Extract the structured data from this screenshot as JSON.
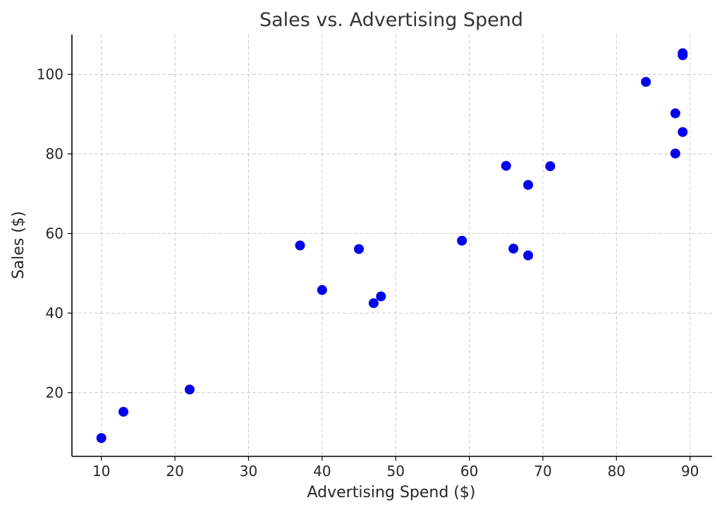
{
  "chart_data": {
    "type": "scatter",
    "title": "Sales vs. Advertising Spend",
    "xlabel": "Advertising Spend ($)",
    "ylabel": "Sales ($)",
    "xlim": [
      6,
      93
    ],
    "ylim": [
      4,
      110
    ],
    "xticks": [
      10,
      20,
      30,
      40,
      50,
      60,
      70,
      80,
      90
    ],
    "yticks": [
      20,
      40,
      60,
      80,
      100
    ],
    "grid": true,
    "marker_color": "#0000ee",
    "points": [
      {
        "x": 10,
        "y": 8.6
      },
      {
        "x": 13,
        "y": 15.2
      },
      {
        "x": 22,
        "y": 20.8
      },
      {
        "x": 37,
        "y": 57.0
      },
      {
        "x": 40,
        "y": 45.8
      },
      {
        "x": 45,
        "y": 56.1
      },
      {
        "x": 47,
        "y": 42.5
      },
      {
        "x": 48,
        "y": 44.2
      },
      {
        "x": 59,
        "y": 58.2
      },
      {
        "x": 65,
        "y": 77.0
      },
      {
        "x": 66,
        "y": 56.2
      },
      {
        "x": 68,
        "y": 72.2
      },
      {
        "x": 68,
        "y": 54.5
      },
      {
        "x": 71,
        "y": 76.9
      },
      {
        "x": 84,
        "y": 98.1
      },
      {
        "x": 88,
        "y": 90.2
      },
      {
        "x": 88,
        "y": 80.1
      },
      {
        "x": 89,
        "y": 85.5
      },
      {
        "x": 89,
        "y": 105.3
      },
      {
        "x": 89,
        "y": 104.8
      }
    ]
  }
}
